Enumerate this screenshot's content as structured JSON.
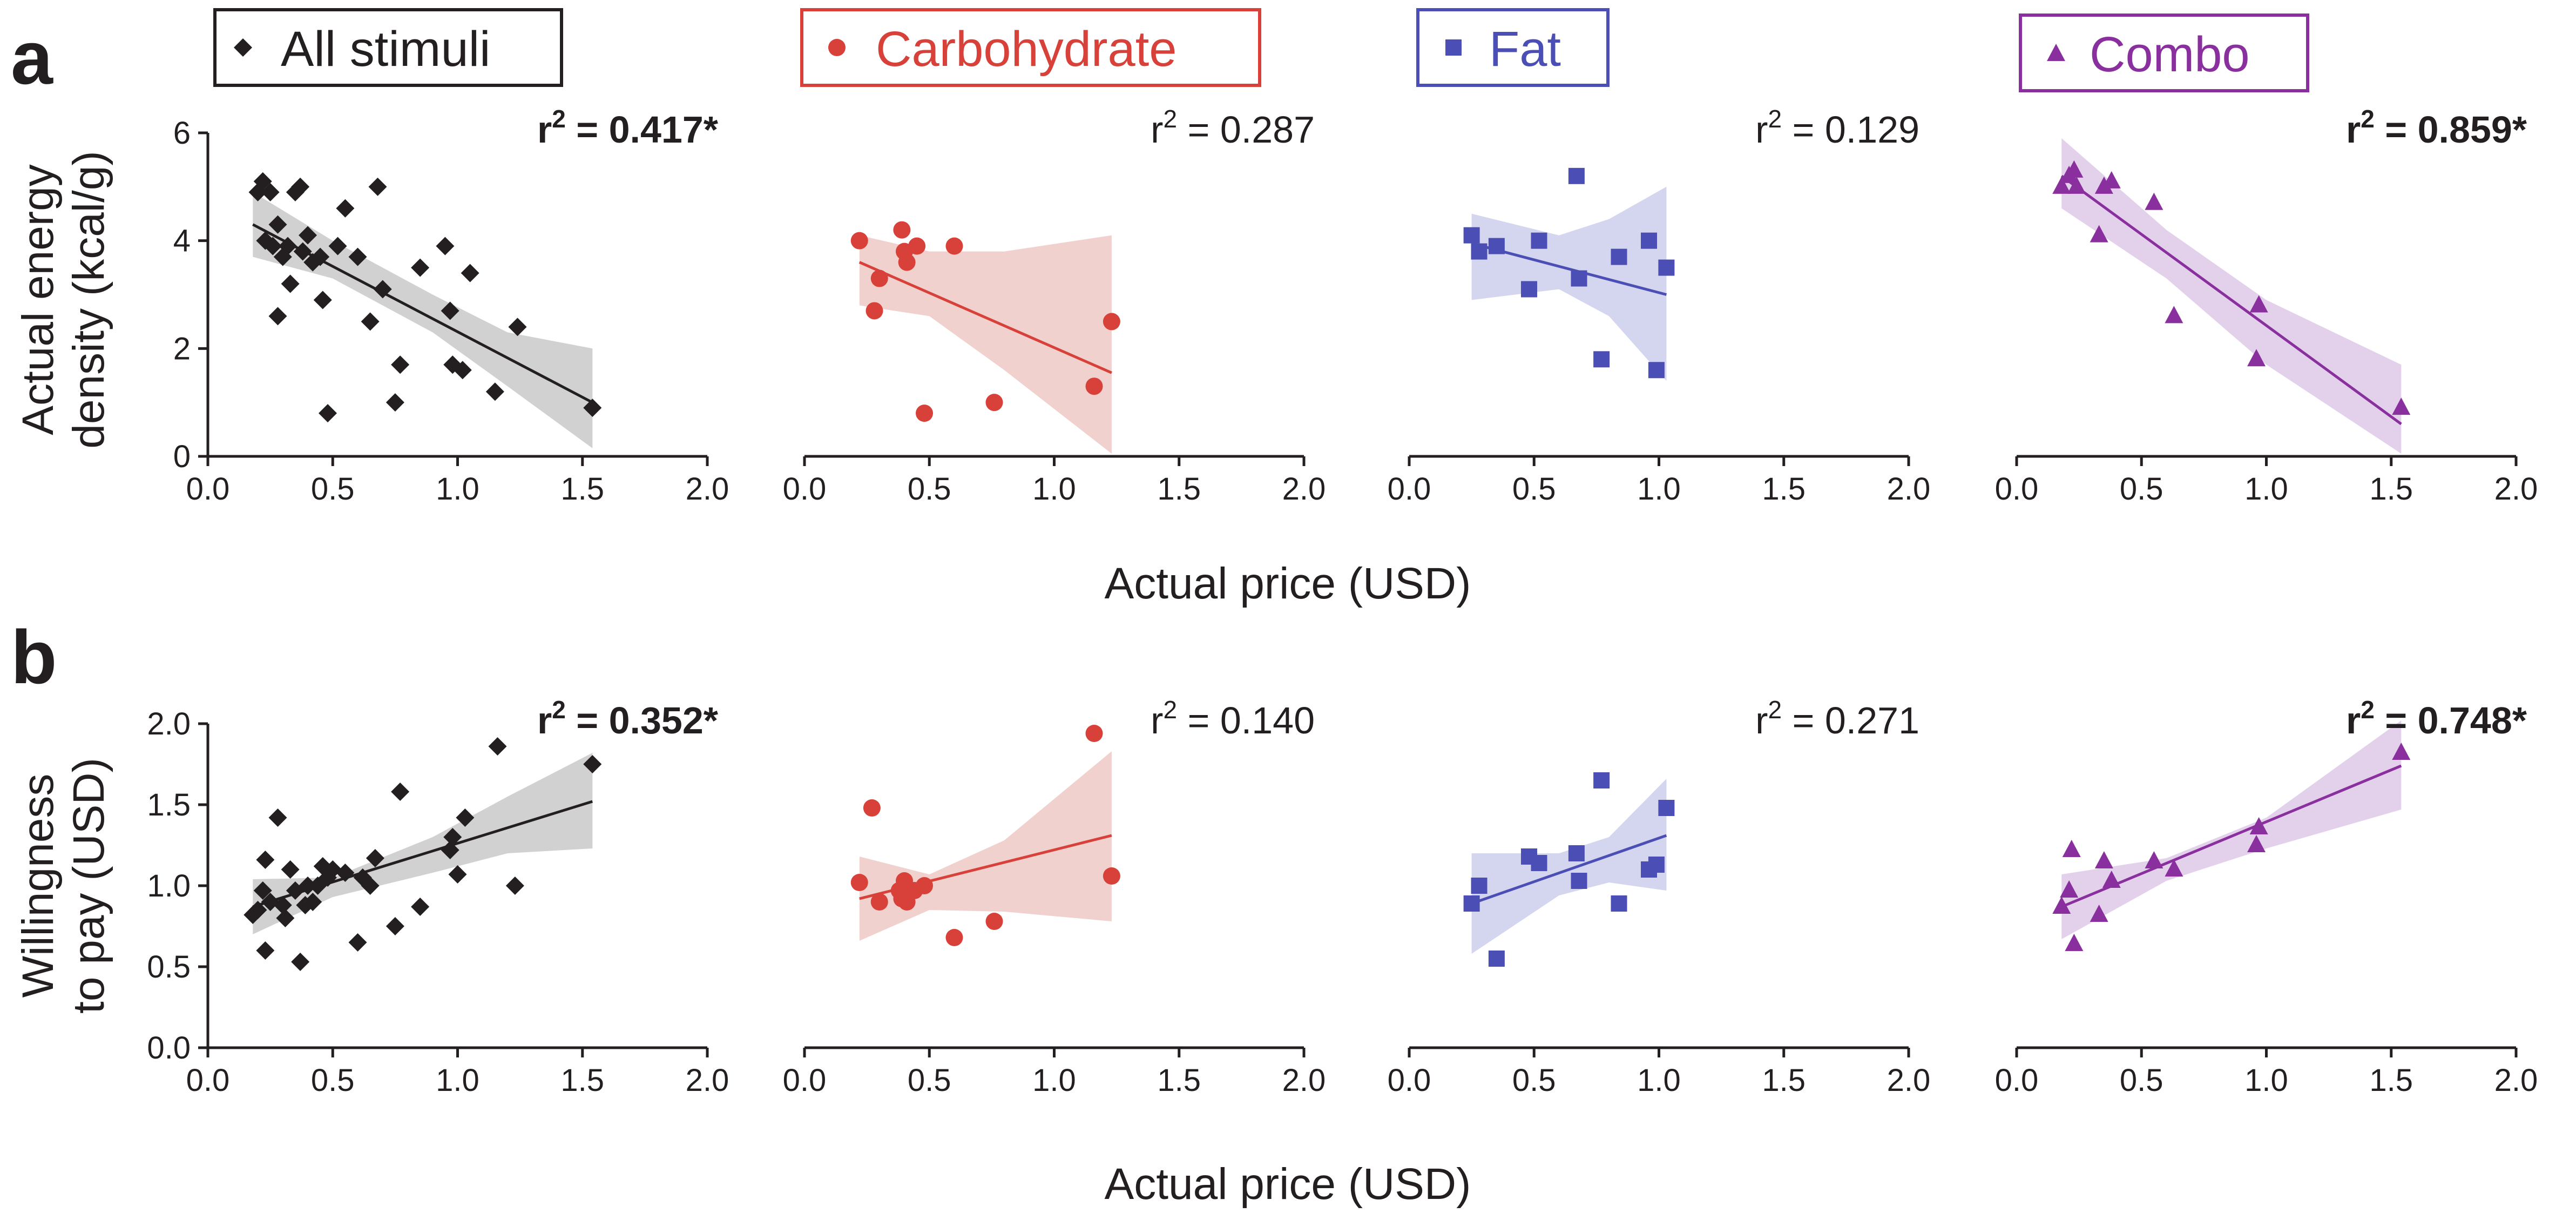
{
  "panel_labels": {
    "a": "a",
    "b": "b"
  },
  "legend": [
    {
      "group": "all",
      "label": "All stimuli",
      "marker": "diamond",
      "color": "#231f20"
    },
    {
      "group": "carb",
      "label": "Carbohydrate",
      "marker": "circle",
      "color": "#d8413a"
    },
    {
      "group": "fat",
      "label": "Fat",
      "marker": "square",
      "color": "#4b4fb5"
    },
    {
      "group": "combo",
      "label": "Combo",
      "marker": "triangle",
      "color": "#8a2f9e"
    }
  ],
  "xaxis_title": "Actual price (USD)",
  "rows": {
    "a": {
      "ylabel_line1": "Actual energy",
      "ylabel_line2": "density (kcal/g)"
    },
    "b": {
      "ylabel_line1": "Willingness",
      "ylabel_line2": "to pay (USD)"
    }
  },
  "chart_data": [
    {
      "type": "scatter",
      "row": "a",
      "group": "all",
      "color": "#231f20",
      "marker": "diamond",
      "band_color": "#b3b3b3",
      "xlim": [
        0,
        2
      ],
      "ylim": [
        0,
        6
      ],
      "xticks": [
        "0.0",
        "0.5",
        "1.0",
        "1.5",
        "2.0"
      ],
      "yticks": [
        "0",
        "2",
        "4",
        "6"
      ],
      "r2_label": "= 0.417*",
      "r2_bold": true,
      "points": [
        [
          0.2,
          4.9
        ],
        [
          0.22,
          5.1
        ],
        [
          0.25,
          4.9
        ],
        [
          0.23,
          4.0
        ],
        [
          0.26,
          3.9
        ],
        [
          0.28,
          4.3
        ],
        [
          0.3,
          3.7
        ],
        [
          0.32,
          3.9
        ],
        [
          0.33,
          3.2
        ],
        [
          0.28,
          2.6
        ],
        [
          0.35,
          4.9
        ],
        [
          0.37,
          5.0
        ],
        [
          0.38,
          3.8
        ],
        [
          0.4,
          4.1
        ],
        [
          0.42,
          3.6
        ],
        [
          0.45,
          3.7
        ],
        [
          0.46,
          2.9
        ],
        [
          0.48,
          0.8
        ],
        [
          0.52,
          3.9
        ],
        [
          0.55,
          4.6
        ],
        [
          0.6,
          3.7
        ],
        [
          0.65,
          2.5
        ],
        [
          0.68,
          5.0
        ],
        [
          0.7,
          3.1
        ],
        [
          0.75,
          1.0
        ],
        [
          0.77,
          1.7
        ],
        [
          0.85,
          3.5
        ],
        [
          0.95,
          3.9
        ],
        [
          0.97,
          2.7
        ],
        [
          0.98,
          1.7
        ],
        [
          1.02,
          1.6
        ],
        [
          1.05,
          3.4
        ],
        [
          1.15,
          1.2
        ],
        [
          1.24,
          2.4
        ],
        [
          1.54,
          0.9
        ]
      ],
      "fit": {
        "x0": 0.18,
        "y0": 4.3,
        "x1": 1.54,
        "y1": 1.0
      },
      "band": {
        "upper": [
          [
            0.18,
            4.9
          ],
          [
            0.5,
            4.0
          ],
          [
            0.9,
            3.0
          ],
          [
            1.2,
            2.3
          ],
          [
            1.54,
            2.0
          ]
        ],
        "lower": [
          [
            0.18,
            3.7
          ],
          [
            0.5,
            3.3
          ],
          [
            0.9,
            2.3
          ],
          [
            1.2,
            1.3
          ],
          [
            1.54,
            0.15
          ]
        ]
      }
    },
    {
      "type": "scatter",
      "row": "a",
      "group": "carb",
      "color": "#d8413a",
      "marker": "circle",
      "band_color": "#e8b3ae",
      "xlim": [
        0,
        2
      ],
      "ylim": [
        0,
        6
      ],
      "xticks": [
        "0.0",
        "0.5",
        "1.0",
        "1.5",
        "2.0"
      ],
      "yticks": [],
      "r2_label": "= 0.287",
      "r2_bold": false,
      "points": [
        [
          0.22,
          4.0
        ],
        [
          0.28,
          2.7
        ],
        [
          0.3,
          3.3
        ],
        [
          0.39,
          4.2
        ],
        [
          0.4,
          3.8
        ],
        [
          0.41,
          3.6
        ],
        [
          0.45,
          3.9
        ],
        [
          0.48,
          0.8
        ],
        [
          0.6,
          3.9
        ],
        [
          0.76,
          1.0
        ],
        [
          1.16,
          1.3
        ],
        [
          1.23,
          2.5
        ]
      ],
      "fit": {
        "x0": 0.22,
        "y0": 3.6,
        "x1": 1.23,
        "y1": 1.55
      },
      "band": {
        "upper": [
          [
            0.22,
            4.1
          ],
          [
            0.5,
            3.8
          ],
          [
            0.8,
            3.8
          ],
          [
            1.23,
            4.1
          ]
        ],
        "lower": [
          [
            0.22,
            2.8
          ],
          [
            0.5,
            2.6
          ],
          [
            0.8,
            1.6
          ],
          [
            1.23,
            0.05
          ]
        ]
      }
    },
    {
      "type": "scatter",
      "row": "a",
      "group": "fat",
      "color": "#4b4fb5",
      "marker": "square",
      "band_color": "#b8b9e3",
      "xlim": [
        0,
        2
      ],
      "ylim": [
        0,
        6
      ],
      "xticks": [
        "0.0",
        "0.5",
        "1.0",
        "1.5",
        "2.0"
      ],
      "yticks": [],
      "r2_label": "= 0.129",
      "r2_bold": false,
      "points": [
        [
          0.25,
          4.1
        ],
        [
          0.28,
          3.8
        ],
        [
          0.35,
          3.9
        ],
        [
          0.48,
          3.1
        ],
        [
          0.52,
          4.0
        ],
        [
          0.67,
          5.2
        ],
        [
          0.68,
          3.3
        ],
        [
          0.77,
          1.8
        ],
        [
          0.84,
          3.7
        ],
        [
          0.96,
          4.0
        ],
        [
          0.99,
          1.6
        ],
        [
          1.03,
          3.5
        ]
      ],
      "fit": {
        "x0": 0.25,
        "y0": 3.95,
        "x1": 1.03,
        "y1": 3.0
      },
      "band": {
        "upper": [
          [
            0.25,
            4.5
          ],
          [
            0.6,
            4.1
          ],
          [
            0.8,
            4.4
          ],
          [
            1.03,
            5.0
          ]
        ],
        "lower": [
          [
            0.25,
            2.9
          ],
          [
            0.6,
            3.1
          ],
          [
            0.8,
            2.6
          ],
          [
            1.03,
            1.4
          ]
        ]
      }
    },
    {
      "type": "scatter",
      "row": "a",
      "group": "combo",
      "color": "#8a2f9e",
      "marker": "triangle",
      "band_color": "#d1b2df",
      "xlim": [
        0,
        2
      ],
      "ylim": [
        0,
        6
      ],
      "xticks": [
        "0.0",
        "0.5",
        "1.0",
        "1.5",
        "2.0"
      ],
      "yticks": [],
      "r2_label": "= 0.859*",
      "r2_bold": true,
      "points": [
        [
          0.18,
          5.0
        ],
        [
          0.21,
          5.2
        ],
        [
          0.23,
          5.3
        ],
        [
          0.24,
          5.0
        ],
        [
          0.33,
          4.1
        ],
        [
          0.35,
          5.0
        ],
        [
          0.38,
          5.1
        ],
        [
          0.55,
          4.7
        ],
        [
          0.63,
          2.6
        ],
        [
          0.96,
          1.8
        ],
        [
          0.97,
          2.8
        ],
        [
          1.54,
          0.9
        ]
      ],
      "fit": {
        "x0": 0.18,
        "y0": 5.2,
        "x1": 1.54,
        "y1": 0.6
      },
      "band": {
        "upper": [
          [
            0.18,
            5.9
          ],
          [
            0.6,
            4.2
          ],
          [
            1.0,
            2.9
          ],
          [
            1.54,
            1.7
          ]
        ],
        "lower": [
          [
            0.18,
            4.6
          ],
          [
            0.6,
            3.3
          ],
          [
            1.0,
            1.7
          ],
          [
            1.54,
            0.05
          ]
        ]
      }
    },
    {
      "type": "scatter",
      "row": "b",
      "group": "all",
      "color": "#231f20",
      "marker": "diamond",
      "band_color": "#b3b3b3",
      "xlim": [
        0,
        2
      ],
      "ylim": [
        0,
        2
      ],
      "xticks": [
        "0.0",
        "0.5",
        "1.0",
        "1.5",
        "2.0"
      ],
      "yticks": [
        "0.0",
        "0.5",
        "1.0",
        "1.5",
        "2.0"
      ],
      "r2_label": "= 0.352*",
      "r2_bold": true,
      "points": [
        [
          0.18,
          0.82
        ],
        [
          0.2,
          0.85
        ],
        [
          0.22,
          0.97
        ],
        [
          0.23,
          0.6
        ],
        [
          0.23,
          1.16
        ],
        [
          0.25,
          0.9
        ],
        [
          0.28,
          1.42
        ],
        [
          0.3,
          0.88
        ],
        [
          0.31,
          0.8
        ],
        [
          0.33,
          1.1
        ],
        [
          0.35,
          0.97
        ],
        [
          0.37,
          0.53
        ],
        [
          0.39,
          0.88
        ],
        [
          0.4,
          1.0
        ],
        [
          0.42,
          0.9
        ],
        [
          0.44,
          1.0
        ],
        [
          0.46,
          1.12
        ],
        [
          0.48,
          1.05
        ],
        [
          0.5,
          1.1
        ],
        [
          0.55,
          1.08
        ],
        [
          0.6,
          0.65
        ],
        [
          0.62,
          1.05
        ],
        [
          0.65,
          1.0
        ],
        [
          0.67,
          1.17
        ],
        [
          0.75,
          0.75
        ],
        [
          0.77,
          1.58
        ],
        [
          0.85,
          0.87
        ],
        [
          0.97,
          1.22
        ],
        [
          0.98,
          1.3
        ],
        [
          1.0,
          1.07
        ],
        [
          1.03,
          1.42
        ],
        [
          1.16,
          1.86
        ],
        [
          1.23,
          1.0
        ],
        [
          1.54,
          1.75
        ]
      ],
      "fit": {
        "x0": 0.18,
        "y0": 0.87,
        "x1": 1.54,
        "y1": 1.52
      },
      "band": {
        "upper": [
          [
            0.18,
            1.04
          ],
          [
            0.5,
            1.05
          ],
          [
            0.9,
            1.3
          ],
          [
            1.2,
            1.55
          ],
          [
            1.54,
            1.82
          ]
        ],
        "lower": [
          [
            0.18,
            0.7
          ],
          [
            0.5,
            0.93
          ],
          [
            0.9,
            1.08
          ],
          [
            1.2,
            1.2
          ],
          [
            1.54,
            1.23
          ]
        ]
      }
    },
    {
      "type": "scatter",
      "row": "b",
      "group": "carb",
      "color": "#d8413a",
      "marker": "circle",
      "band_color": "#e8b3ae",
      "xlim": [
        0,
        2
      ],
      "ylim": [
        0,
        2
      ],
      "xticks": [
        "0.0",
        "0.5",
        "1.0",
        "1.5",
        "2.0"
      ],
      "yticks": [],
      "r2_label": "= 0.140",
      "r2_bold": false,
      "points": [
        [
          0.22,
          1.02
        ],
        [
          0.27,
          1.48
        ],
        [
          0.3,
          0.9
        ],
        [
          0.38,
          0.97
        ],
        [
          0.39,
          0.92
        ],
        [
          0.4,
          1.03
        ],
        [
          0.41,
          0.9
        ],
        [
          0.44,
          0.97
        ],
        [
          0.48,
          1.0
        ],
        [
          0.6,
          0.68
        ],
        [
          0.76,
          0.78
        ],
        [
          1.16,
          1.94
        ],
        [
          1.23,
          1.06
        ]
      ],
      "fit": {
        "x0": 0.22,
        "y0": 0.92,
        "x1": 1.23,
        "y1": 1.31
      },
      "band": {
        "upper": [
          [
            0.22,
            1.18
          ],
          [
            0.5,
            1.07
          ],
          [
            0.8,
            1.28
          ],
          [
            1.23,
            1.83
          ]
        ],
        "lower": [
          [
            0.22,
            0.66
          ],
          [
            0.5,
            0.85
          ],
          [
            0.8,
            0.84
          ],
          [
            1.23,
            0.78
          ]
        ]
      }
    },
    {
      "type": "scatter",
      "row": "b",
      "group": "fat",
      "color": "#4b4fb5",
      "marker": "square",
      "band_color": "#b8b9e3",
      "xlim": [
        0,
        2
      ],
      "ylim": [
        0,
        2
      ],
      "xticks": [
        "0.0",
        "0.5",
        "1.0",
        "1.5",
        "2.0"
      ],
      "yticks": [],
      "r2_label": "= 0.271",
      "r2_bold": false,
      "points": [
        [
          0.25,
          0.89
        ],
        [
          0.28,
          1.0
        ],
        [
          0.35,
          0.55
        ],
        [
          0.48,
          1.18
        ],
        [
          0.52,
          1.14
        ],
        [
          0.67,
          1.2
        ],
        [
          0.68,
          1.03
        ],
        [
          0.77,
          1.65
        ],
        [
          0.84,
          0.89
        ],
        [
          0.96,
          1.1
        ],
        [
          0.99,
          1.13
        ],
        [
          1.03,
          1.48
        ]
      ],
      "fit": {
        "x0": 0.25,
        "y0": 0.89,
        "x1": 1.03,
        "y1": 1.31
      },
      "band": {
        "upper": [
          [
            0.25,
            1.2
          ],
          [
            0.6,
            1.2
          ],
          [
            0.8,
            1.3
          ],
          [
            1.03,
            1.66
          ]
        ],
        "lower": [
          [
            0.25,
            0.58
          ],
          [
            0.6,
            0.94
          ],
          [
            0.8,
            1.02
          ],
          [
            1.03,
            0.97
          ]
        ]
      }
    },
    {
      "type": "scatter",
      "row": "b",
      "group": "combo",
      "color": "#8a2f9e",
      "marker": "triangle",
      "band_color": "#d1b2df",
      "xlim": [
        0,
        2
      ],
      "ylim": [
        0,
        2
      ],
      "xticks": [
        "0.0",
        "0.5",
        "1.0",
        "1.5",
        "2.0"
      ],
      "yticks": [],
      "r2_label": "= 0.748*",
      "r2_bold": true,
      "points": [
        [
          0.18,
          0.87
        ],
        [
          0.21,
          0.97
        ],
        [
          0.22,
          1.22
        ],
        [
          0.23,
          0.64
        ],
        [
          0.33,
          0.82
        ],
        [
          0.35,
          1.15
        ],
        [
          0.38,
          1.03
        ],
        [
          0.55,
          1.15
        ],
        [
          0.63,
          1.1
        ],
        [
          0.96,
          1.25
        ],
        [
          0.97,
          1.36
        ],
        [
          1.54,
          1.82
        ]
      ],
      "fit": {
        "x0": 0.18,
        "y0": 0.87,
        "x1": 1.54,
        "y1": 1.74
      },
      "band": {
        "upper": [
          [
            0.18,
            1.07
          ],
          [
            0.6,
            1.17
          ],
          [
            1.0,
            1.42
          ],
          [
            1.54,
            2.02
          ]
        ],
        "lower": [
          [
            0.18,
            0.67
          ],
          [
            0.6,
            1.03
          ],
          [
            1.0,
            1.23
          ],
          [
            1.54,
            1.47
          ]
        ]
      }
    }
  ]
}
